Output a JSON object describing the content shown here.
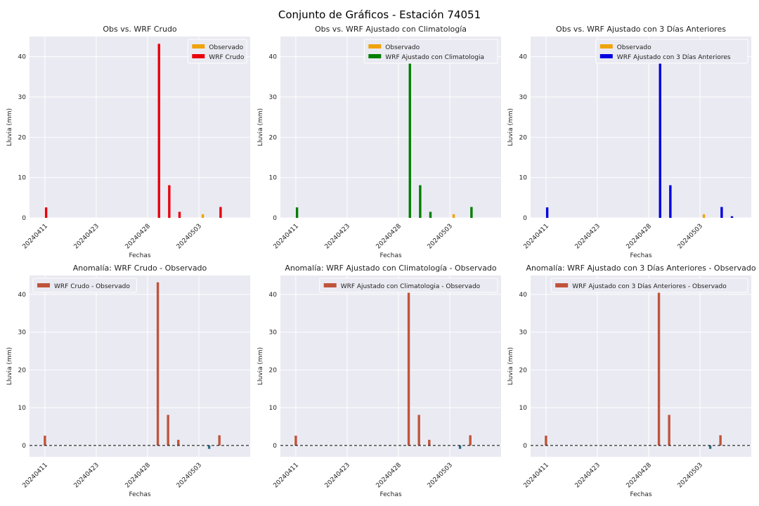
{
  "suptitle": "Conjunto de Gráficos - Estación 74051",
  "colors": {
    "observado": "#f0a30a",
    "crudo": "#e8000b",
    "clima": "#007f00",
    "tresdias": "#0000e0",
    "anomalia_pos": "#c0543b",
    "anomalia_neg": "#2e6f88",
    "axes_bg": "#eaeaf2",
    "grid": "#ffffff"
  },
  "chart_data": [
    {
      "type": "bar",
      "title": "Obs vs. WRF Crudo",
      "xlabel": "Fechas",
      "ylabel": "Lluvia (mm)",
      "ylim": [
        0,
        45
      ],
      "yticks": [
        0,
        10,
        20,
        30,
        40
      ],
      "xlim": [
        0,
        43
      ],
      "xticks": [
        {
          "pos": 3,
          "label": "20240411"
        },
        {
          "pos": 13,
          "label": "20240423"
        },
        {
          "pos": 23,
          "label": "20240428"
        },
        {
          "pos": 33,
          "label": "20240503"
        }
      ],
      "legend": {
        "position": "top-right",
        "entries": [
          {
            "label": "Observado",
            "color": "observado"
          },
          {
            "label": "WRF Crudo",
            "color": "crudo"
          }
        ]
      },
      "series": [
        {
          "name": "Observado",
          "color": "observado",
          "points": [
            [
              3,
              0
            ],
            [
              25,
              0
            ],
            [
              27,
              0
            ],
            [
              29,
              0
            ],
            [
              34,
              0.9
            ],
            [
              37,
              0
            ]
          ]
        },
        {
          "name": "WRF Crudo",
          "color": "crudo",
          "points": [
            [
              3,
              2.6
            ],
            [
              25,
              43.2
            ],
            [
              27,
              8.1
            ],
            [
              29,
              1.5
            ],
            [
              34,
              0
            ],
            [
              37,
              2.7
            ]
          ]
        }
      ]
    },
    {
      "type": "bar",
      "title": "Obs vs. WRF Ajustado con Climatología",
      "xlabel": "Fechas",
      "ylabel": "Lluvia (mm)",
      "ylim": [
        0,
        45
      ],
      "yticks": [
        0,
        10,
        20,
        30,
        40
      ],
      "xlim": [
        0,
        43
      ],
      "xticks": [
        {
          "pos": 3,
          "label": "20240411"
        },
        {
          "pos": 13,
          "label": "20240423"
        },
        {
          "pos": 23,
          "label": "20240428"
        },
        {
          "pos": 33,
          "label": "20240503"
        }
      ],
      "legend": {
        "position": "top-right",
        "entries": [
          {
            "label": "Observado",
            "color": "observado"
          },
          {
            "label": "WRF Ajustado con Climatologia",
            "color": "clima"
          }
        ]
      },
      "series": [
        {
          "name": "Observado",
          "color": "observado",
          "points": [
            [
              3,
              0
            ],
            [
              25,
              0
            ],
            [
              27,
              0
            ],
            [
              29,
              0
            ],
            [
              34,
              0.9
            ],
            [
              37,
              0
            ]
          ]
        },
        {
          "name": "WRF Ajustado con Climatologia",
          "color": "clima",
          "points": [
            [
              3,
              2.6
            ],
            [
              25,
              43.2
            ],
            [
              27,
              8.1
            ],
            [
              29,
              1.5
            ],
            [
              34,
              0
            ],
            [
              37,
              2.7
            ]
          ]
        }
      ]
    },
    {
      "type": "bar",
      "title": "Obs vs. WRF Ajustado con 3 Días Anteriores",
      "xlabel": "Fechas",
      "ylabel": "Lluvia (mm)",
      "ylim": [
        0,
        45
      ],
      "yticks": [
        0,
        10,
        20,
        30,
        40
      ],
      "xlim": [
        0,
        43
      ],
      "xticks": [
        {
          "pos": 3,
          "label": "20240411"
        },
        {
          "pos": 13,
          "label": "20240423"
        },
        {
          "pos": 23,
          "label": "20240428"
        },
        {
          "pos": 33,
          "label": "20240503"
        }
      ],
      "legend": {
        "position": "top-right",
        "entries": [
          {
            "label": "Observado",
            "color": "observado"
          },
          {
            "label": "WRF Ajustado con 3 Días Anteriores",
            "color": "tresdias"
          }
        ]
      },
      "series": [
        {
          "name": "Observado",
          "color": "observado",
          "points": [
            [
              3,
              0
            ],
            [
              25,
              0
            ],
            [
              27,
              0
            ],
            [
              34,
              0.9
            ],
            [
              37,
              0
            ],
            [
              39,
              0
            ]
          ]
        },
        {
          "name": "WRF Ajustado con 3 Días Anteriores",
          "color": "tresdias",
          "points": [
            [
              3,
              2.6
            ],
            [
              25,
              43.2
            ],
            [
              27,
              8.1
            ],
            [
              34,
              0
            ],
            [
              37,
              2.7
            ],
            [
              39,
              0.4
            ]
          ]
        }
      ]
    },
    {
      "type": "bar",
      "title": "Anomalía: WRF Crudo - Observado",
      "xlabel": "Fechas",
      "ylabel": "Lluvia (mm)",
      "ylim": [
        -3,
        45
      ],
      "yticks": [
        0,
        10,
        20,
        30,
        40
      ],
      "xlim": [
        0,
        43
      ],
      "xticks": [
        {
          "pos": 3,
          "label": "20240411"
        },
        {
          "pos": 13,
          "label": "20240423"
        },
        {
          "pos": 23,
          "label": "20240428"
        },
        {
          "pos": 33,
          "label": "20240503"
        }
      ],
      "zero_line": true,
      "legend": {
        "position": "top-left",
        "entries": [
          {
            "label": "WRF Crudo - Observado",
            "color": "anomalia_pos"
          }
        ]
      },
      "series": [
        {
          "name": "WRF Crudo - Observado",
          "color": "anomalia_pos",
          "neg_color": "anomalia_neg",
          "points": [
            [
              3,
              2.6
            ],
            [
              25,
              43.2
            ],
            [
              27,
              8.1
            ],
            [
              29,
              1.5
            ],
            [
              35,
              -0.9
            ],
            [
              37,
              2.7
            ]
          ]
        }
      ]
    },
    {
      "type": "bar",
      "title": "Anomalía: WRF Ajustado con Climatología - Observado",
      "xlabel": "Fechas",
      "ylabel": "Lluvia (mm)",
      "ylim": [
        -3,
        45
      ],
      "yticks": [
        0,
        10,
        20,
        30,
        40
      ],
      "xlim": [
        0,
        43
      ],
      "xticks": [
        {
          "pos": 3,
          "label": "20240411"
        },
        {
          "pos": 13,
          "label": "20240423"
        },
        {
          "pos": 23,
          "label": "20240428"
        },
        {
          "pos": 33,
          "label": "20240503"
        }
      ],
      "zero_line": true,
      "legend": {
        "position": "top-right",
        "entries": [
          {
            "label": "WRF Ajustado con Climatologia - Observado",
            "color": "anomalia_pos"
          }
        ]
      },
      "series": [
        {
          "name": "WRF Ajustado con Climatologia - Observado",
          "color": "anomalia_pos",
          "neg_color": "anomalia_neg",
          "points": [
            [
              3,
              2.6
            ],
            [
              25,
              43.2
            ],
            [
              27,
              8.1
            ],
            [
              29,
              1.5
            ],
            [
              35,
              -0.9
            ],
            [
              37,
              2.7
            ]
          ]
        }
      ]
    },
    {
      "type": "bar",
      "title": "Anomalía: WRF Ajustado con 3 Días Anteriores - Observado",
      "xlabel": "Fechas",
      "ylabel": "Lluvia (mm)",
      "ylim": [
        -3,
        45
      ],
      "yticks": [
        0,
        10,
        20,
        30,
        40
      ],
      "xlim": [
        0,
        43
      ],
      "xticks": [
        {
          "pos": 3,
          "label": "20240411"
        },
        {
          "pos": 13,
          "label": "20240423"
        },
        {
          "pos": 23,
          "label": "20240428"
        },
        {
          "pos": 33,
          "label": "20240503"
        }
      ],
      "zero_line": true,
      "legend": {
        "position": "top-right",
        "entries": [
          {
            "label": "WRF Ajustado con 3 Días Anteriores - Observado",
            "color": "anomalia_pos"
          }
        ]
      },
      "series": [
        {
          "name": "WRF Ajustado con 3 Días Anteriores - Observado",
          "color": "anomalia_pos",
          "neg_color": "anomalia_neg",
          "points": [
            [
              3,
              2.6
            ],
            [
              25,
              43.2
            ],
            [
              27,
              8.1
            ],
            [
              35,
              -0.9
            ],
            [
              37,
              2.7
            ]
          ]
        }
      ]
    }
  ]
}
